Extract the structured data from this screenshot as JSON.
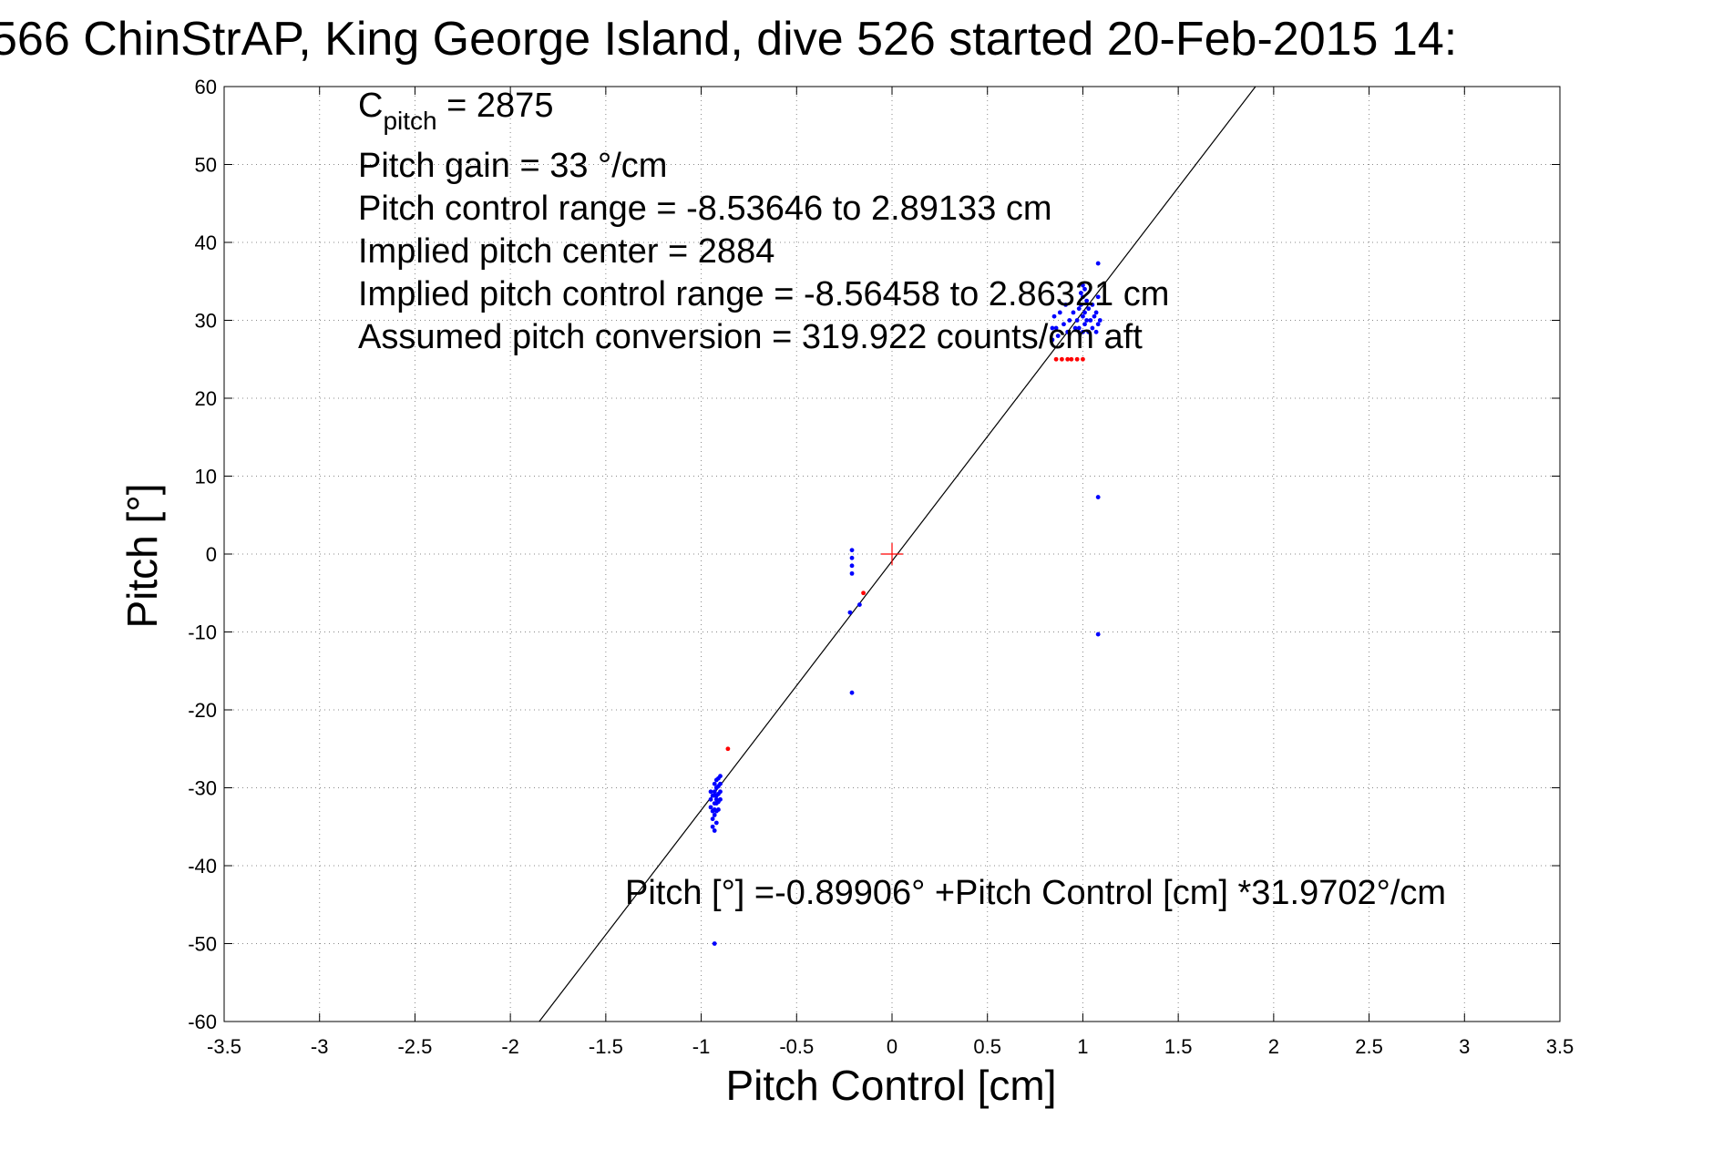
{
  "chart_data": {
    "type": "scatter",
    "title": "566 ChinStrAP, King George Island, dive 526 started 20-Feb-2015 14:",
    "xlabel": "Pitch Control [cm]",
    "ylabel": "Pitch [°]",
    "xlim": [
      -3.5,
      3.5
    ],
    "ylim": [
      -60,
      60
    ],
    "xticks": [
      -3.5,
      -3,
      -2.5,
      -2,
      -1.5,
      -1,
      -0.5,
      0,
      0.5,
      1,
      1.5,
      2,
      2.5,
      3,
      3.5
    ],
    "yticks": [
      -60,
      -50,
      -40,
      -30,
      -20,
      -10,
      0,
      10,
      20,
      30,
      40,
      50,
      60
    ],
    "xtick_labels": [
      "-3.5",
      "-3",
      "-2.5",
      "-2",
      "-1.5",
      "-1",
      "-0.5",
      "0",
      "0.5",
      "1",
      "1.5",
      "2",
      "2.5",
      "3",
      "3.5"
    ],
    "ytick_labels": [
      "-60",
      "-50",
      "-40",
      "-30",
      "-20",
      "-10",
      "0",
      "10",
      "20",
      "30",
      "40",
      "50",
      "60"
    ],
    "grid": true,
    "colors": {
      "primary": "#0000ff",
      "flagged": "#ff0000",
      "fit": "#000000"
    },
    "annotations": {
      "cpitch_main": "C",
      "cpitch_sub": "pitch",
      "cpitch_value": " = 2875",
      "gain": "Pitch gain = 33 °/cm",
      "control_range": "Pitch control range = -8.53646 to 2.89133 cm",
      "implied_center": "Implied pitch center = 2884",
      "implied_range": "Implied pitch control range = -8.56458 to 2.86321 cm",
      "conversion": "Assumed pitch conversion = 319.922 counts/cm aft",
      "fit_equation": "Pitch [°] =-0.89906° +Pitch Control [cm] *31.9702°/cm"
    },
    "fit_line": {
      "intercept": -0.89906,
      "slope": 31.9702
    },
    "origin_marker": {
      "x": 0,
      "y": 0
    },
    "series": [
      {
        "color": "#0000ff",
        "points": [
          [
            -0.95,
            -30.5
          ],
          [
            -0.95,
            -31.5
          ],
          [
            -0.95,
            -32.5
          ],
          [
            -0.94,
            -33.0
          ],
          [
            -0.94,
            -34.0
          ],
          [
            -0.94,
            -35.0
          ],
          [
            -0.93,
            -29.5
          ],
          [
            -0.93,
            -30.5
          ],
          [
            -0.93,
            -31.0
          ],
          [
            -0.93,
            -32.0
          ],
          [
            -0.93,
            -33.5
          ],
          [
            -0.93,
            -35.5
          ],
          [
            -0.92,
            -29.0
          ],
          [
            -0.92,
            -30.0
          ],
          [
            -0.92,
            -31.0
          ],
          [
            -0.92,
            -32.0
          ],
          [
            -0.92,
            -33.0
          ],
          [
            -0.92,
            -34.5
          ],
          [
            -0.91,
            -28.8
          ],
          [
            -0.91,
            -29.8
          ],
          [
            -0.91,
            -30.8
          ],
          [
            -0.91,
            -31.8
          ],
          [
            -0.91,
            -32.8
          ],
          [
            -0.9,
            -28.5
          ],
          [
            -0.9,
            -29.5
          ],
          [
            -0.9,
            -30.5
          ],
          [
            -0.9,
            -31.5
          ],
          [
            -0.94,
            -31.0
          ],
          [
            -0.93,
            -32.8
          ],
          [
            -0.92,
            -31.5
          ],
          [
            -0.93,
            -50.0
          ],
          [
            -0.21,
            0.5
          ],
          [
            -0.21,
            -0.5
          ],
          [
            -0.21,
            -1.5
          ],
          [
            -0.21,
            -2.5
          ],
          [
            -0.22,
            -7.5
          ],
          [
            -0.17,
            -6.5
          ],
          [
            -0.21,
            -17.8
          ],
          [
            0.84,
            27.5
          ],
          [
            0.84,
            29.0
          ],
          [
            0.85,
            30.5
          ],
          [
            0.86,
            29.0
          ],
          [
            0.87,
            28.0
          ],
          [
            0.88,
            31.0
          ],
          [
            0.9,
            29.5
          ],
          [
            0.91,
            32.0
          ],
          [
            0.92,
            28.5
          ],
          [
            0.93,
            30.0
          ],
          [
            0.95,
            31.0
          ],
          [
            0.96,
            29.0
          ],
          [
            0.97,
            30.0
          ],
          [
            0.98,
            31.5
          ],
          [
            0.98,
            29.0
          ],
          [
            0.99,
            32.0
          ],
          [
            1.0,
            30.5
          ],
          [
            1.0,
            28.5
          ],
          [
            1.0,
            33.0
          ],
          [
            1.01,
            31.0
          ],
          [
            1.01,
            29.5
          ],
          [
            1.02,
            30.0
          ],
          [
            1.02,
            32.5
          ],
          [
            1.03,
            28.5
          ],
          [
            1.03,
            31.5
          ],
          [
            1.04,
            30.0
          ],
          [
            1.05,
            29.0
          ],
          [
            1.05,
            32.0
          ],
          [
            1.06,
            30.5
          ],
          [
            1.07,
            28.5
          ],
          [
            1.07,
            31.0
          ],
          [
            1.08,
            29.5
          ],
          [
            1.08,
            33.0
          ],
          [
            1.09,
            30.0
          ],
          [
            1.08,
            37.3
          ],
          [
            1.01,
            34.0
          ],
          [
            0.99,
            33.5
          ],
          [
            1.0,
            34.5
          ],
          [
            1.08,
            7.3
          ],
          [
            1.08,
            -10.3
          ]
        ]
      },
      {
        "color": "#ff0000",
        "points": [
          [
            -0.86,
            -25.0
          ],
          [
            -0.15,
            -5.0
          ],
          [
            0.86,
            25.0
          ],
          [
            0.89,
            25.0
          ],
          [
            0.92,
            25.0
          ],
          [
            0.94,
            25.0
          ],
          [
            0.97,
            25.0
          ],
          [
            1.0,
            25.0
          ]
        ]
      }
    ]
  }
}
